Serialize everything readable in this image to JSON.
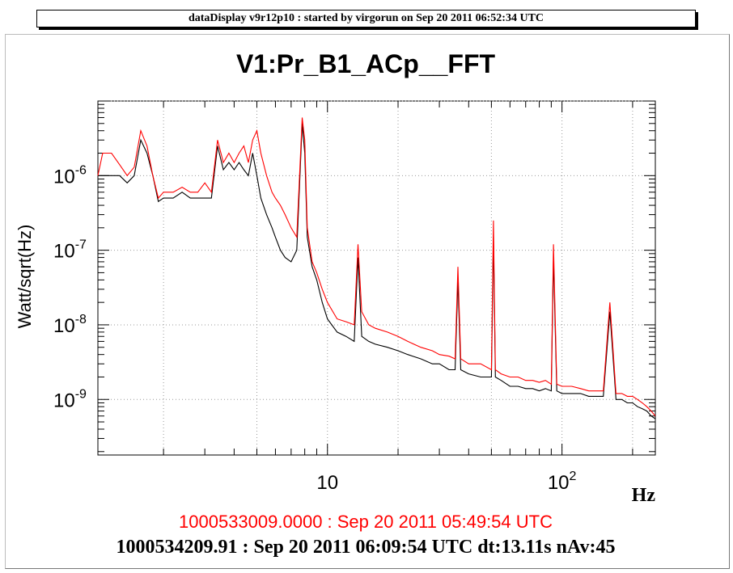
{
  "banner": {
    "text": "dataDisplay v9r12p10 : started by virgorun on Sep 20 2011 06:52:34 UTC"
  },
  "chart_data": {
    "type": "line",
    "title": "V1:Pr_B1_ACp__FFT",
    "xlabel": "Hz",
    "ylabel": "Watt/sqrt(Hz)",
    "x_scale": "log",
    "y_scale": "log",
    "xlim": [
      1.05,
      250
    ],
    "ylim": [
      1.8e-10,
      1e-05
    ],
    "grid": true,
    "x_tick_labels": [
      {
        "value": 10,
        "base": "10",
        "exp": ""
      },
      {
        "value": 100,
        "base": "10",
        "exp": "2"
      }
    ],
    "y_tick_labels": [
      {
        "value": 1e-06,
        "base": "10",
        "exp": "-6"
      },
      {
        "value": 1e-07,
        "base": "10",
        "exp": "-7"
      },
      {
        "value": 1e-08,
        "base": "10",
        "exp": "-8"
      },
      {
        "value": 1e-09,
        "base": "10",
        "exp": "-9"
      }
    ],
    "series": [
      {
        "name": "1000533009.0000 : Sep 20 2011 05:49:54 UTC",
        "color": "#ff0000",
        "x": [
          1.05,
          1.1,
          1.2,
          1.3,
          1.4,
          1.5,
          1.6,
          1.7,
          1.8,
          1.9,
          2.0,
          2.2,
          2.4,
          2.6,
          2.8,
          3.0,
          3.2,
          3.4,
          3.6,
          3.8,
          4.0,
          4.2,
          4.4,
          4.6,
          4.8,
          5.0,
          5.2,
          5.5,
          5.8,
          6.0,
          6.3,
          6.6,
          7.0,
          7.4,
          7.8,
          8.0,
          8.2,
          8.6,
          9.0,
          9.5,
          10,
          11,
          12,
          13,
          13.5,
          14,
          15,
          16,
          18,
          20,
          22,
          25,
          28,
          30,
          33,
          35,
          36,
          37,
          40,
          45,
          50,
          51,
          52,
          55,
          60,
          65,
          70,
          75,
          80,
          85,
          90,
          92,
          95,
          100,
          105,
          110,
          120,
          130,
          140,
          150,
          160,
          170,
          180,
          190,
          200,
          210,
          220,
          230,
          240,
          250
        ],
        "y": [
          1e-06,
          2e-06,
          2e-06,
          1.4e-06,
          1e-06,
          1.3e-06,
          4e-06,
          2.5e-06,
          1e-06,
          5e-07,
          6e-07,
          6e-07,
          7e-07,
          6e-07,
          6e-07,
          8e-07,
          6e-07,
          3e-06,
          1.5e-06,
          2e-06,
          1.5e-06,
          2e-06,
          2.5e-06,
          1.5e-06,
          3e-06,
          4e-06,
          2e-06,
          1e-06,
          6e-07,
          5e-07,
          4e-07,
          3e-07,
          2e-07,
          1.5e-07,
          6e-06,
          3e-06,
          2e-07,
          7e-08,
          5e-08,
          3e-08,
          2e-08,
          1.2e-08,
          1.1e-08,
          1e-08,
          1.2e-07,
          1.5e-08,
          1e-08,
          9e-09,
          8e-09,
          7e-09,
          6e-09,
          5e-09,
          4.5e-09,
          4e-09,
          3.8e-09,
          3.5e-09,
          6e-08,
          3.5e-09,
          3e-09,
          3e-09,
          2.5e-09,
          2.5e-07,
          2.5e-09,
          2.2e-09,
          2e-09,
          2e-09,
          1.8e-09,
          1.8e-09,
          1.7e-09,
          1.8e-09,
          1.6e-09,
          1.2e-07,
          1.6e-09,
          1.5e-09,
          1.5e-09,
          1.5e-09,
          1.4e-09,
          1.3e-09,
          1.3e-09,
          1.3e-09,
          2e-08,
          1.2e-09,
          1.2e-09,
          1.1e-09,
          1.1e-09,
          1e-09,
          9e-10,
          8e-10,
          7e-10,
          6e-10
        ]
      },
      {
        "name": "1000534209.91 : Sep 20 2011 06:09:54 UTC dt:13.11s nAv:45",
        "color": "#000000",
        "x": [
          1.05,
          1.1,
          1.2,
          1.3,
          1.4,
          1.5,
          1.6,
          1.7,
          1.8,
          1.9,
          2.0,
          2.2,
          2.4,
          2.6,
          2.8,
          3.0,
          3.2,
          3.4,
          3.6,
          3.8,
          4.0,
          4.2,
          4.4,
          4.6,
          4.8,
          5.0,
          5.2,
          5.5,
          5.8,
          6.0,
          6.3,
          6.6,
          7.0,
          7.4,
          7.8,
          8.0,
          8.2,
          8.6,
          9.0,
          9.5,
          10,
          11,
          12,
          13,
          13.5,
          14,
          15,
          16,
          18,
          20,
          22,
          25,
          28,
          30,
          33,
          35,
          36,
          37,
          40,
          45,
          50,
          51,
          52,
          55,
          60,
          65,
          70,
          75,
          80,
          85,
          90,
          92,
          95,
          100,
          105,
          110,
          120,
          130,
          140,
          150,
          160,
          170,
          180,
          190,
          200,
          210,
          220,
          230,
          240,
          250
        ],
        "y": [
          1e-06,
          1e-06,
          1e-06,
          1e-06,
          8e-07,
          1e-06,
          3e-06,
          2e-06,
          1e-06,
          4.5e-07,
          5e-07,
          5e-07,
          6e-07,
          5e-07,
          5e-07,
          5e-07,
          5e-07,
          2.5e-06,
          1.2e-06,
          1.5e-06,
          1.2e-06,
          1.5e-06,
          1.2e-06,
          1e-06,
          2e-06,
          1e-06,
          5e-07,
          3e-07,
          2e-07,
          1.5e-07,
          1e-07,
          8e-08,
          7e-08,
          1e-07,
          5e-06,
          2e-06,
          1.5e-07,
          6e-08,
          4e-08,
          2e-08,
          1.2e-08,
          8e-09,
          7e-09,
          6e-09,
          8e-08,
          7e-09,
          6e-09,
          5.5e-09,
          5e-09,
          4.5e-09,
          4e-09,
          3.5e-09,
          3e-09,
          3e-09,
          2.5e-09,
          2.5e-09,
          4e-08,
          2.5e-09,
          2.2e-09,
          2e-09,
          2e-09,
          1.5e-07,
          2e-09,
          1.8e-09,
          1.5e-09,
          1.5e-09,
          1.4e-09,
          1.4e-09,
          1.3e-09,
          1.4e-09,
          1.3e-09,
          8e-08,
          1.3e-09,
          1.2e-09,
          1.2e-09,
          1.2e-09,
          1.2e-09,
          1.1e-09,
          1.1e-09,
          1.1e-09,
          1.5e-08,
          1e-09,
          1e-09,
          9e-10,
          9e-10,
          8e-10,
          7.5e-10,
          7e-10,
          6e-10,
          5.5e-10
        ]
      }
    ]
  },
  "footer": {
    "red_line": "1000533009.0000 : Sep 20 2011 05:49:54 UTC",
    "black_line": "1000534209.91 : Sep 20 2011 06:09:54 UTC dt:13.11s nAv:45"
  }
}
